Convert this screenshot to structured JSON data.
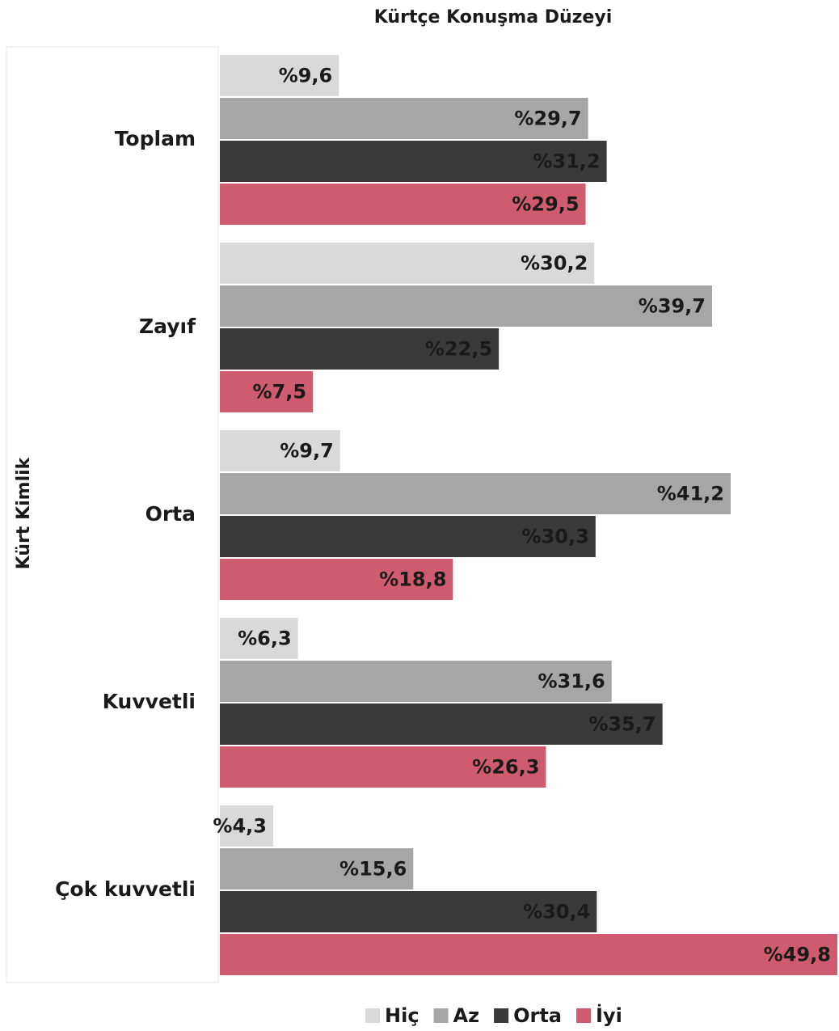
{
  "chart_data": {
    "type": "hbar",
    "title": "Kürtçe Konuşma Düzeyi",
    "y_label": "Kürt Kimlik",
    "categories": [
      "Toplam",
      "Zayıf",
      "Orta",
      "Kuvvetli",
      "Çok kuvvetli"
    ],
    "xlim": [
      0,
      50
    ],
    "series": [
      {
        "name": "Hiç",
        "color": "#d9d9d9",
        "values": [
          9.6,
          30.2,
          9.7,
          6.3,
          4.3
        ],
        "value_labels": [
          "%9,6",
          "%30,2",
          "%9,7",
          "%6,3",
          "%4,3"
        ]
      },
      {
        "name": "Az",
        "color": "#a6a6a6",
        "values": [
          29.7,
          39.7,
          41.2,
          31.6,
          15.6
        ],
        "value_labels": [
          "%29,7",
          "%39,7",
          "%41,2",
          "%31,6",
          "%15,6"
        ]
      },
      {
        "name": "Orta",
        "color": "#3a3a3a",
        "values": [
          31.2,
          22.5,
          30.3,
          35.7,
          30.4
        ],
        "value_labels": [
          "%31,2",
          "%22,5",
          "%30,3",
          "%35,7",
          "%30,4"
        ]
      },
      {
        "name": "İyi",
        "color": "#cf5b6e",
        "values": [
          29.5,
          7.5,
          18.8,
          26.3,
          49.8
        ],
        "value_labels": [
          "%29,5",
          "%7,5",
          "%18,8",
          "%26,3",
          "%49,8"
        ]
      }
    ],
    "legend": "bottom"
  }
}
